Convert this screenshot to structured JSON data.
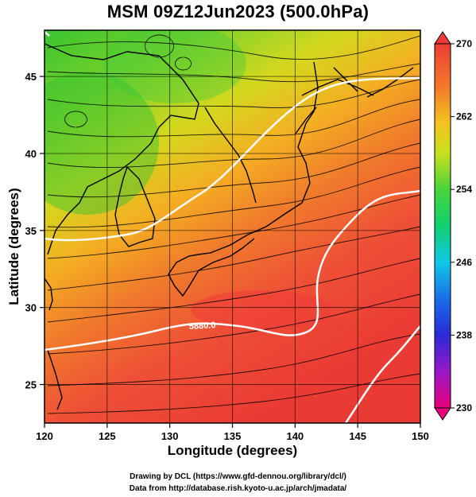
{
  "title": "MSM 09Z12Jun2023 (500.0hPa)",
  "chart_data": {
    "type": "map",
    "xlabel": "Longitude (degrees)",
    "ylabel": "Latitude  (degrees)",
    "xlim": [
      120,
      150
    ],
    "ylim": [
      22.5,
      48
    ],
    "xticks": [
      "120",
      "125",
      "130",
      "135",
      "140",
      "145",
      "150"
    ],
    "yticks": [
      "25",
      "30",
      "35",
      "40",
      "45"
    ],
    "colorbar": {
      "min": 230,
      "max": 270,
      "ticks": [
        "270",
        "262",
        "254",
        "246",
        "238",
        "230"
      ],
      "colors": [
        "#e8007a",
        "#9a18c8",
        "#2a2ad8",
        "#1a6ee8",
        "#10c8e8",
        "#10d070",
        "#4ad43a",
        "#c8e01e",
        "#f4c41e",
        "#f47a2a",
        "#ee3c34"
      ]
    },
    "contour_label": "5880.0",
    "grid": true
  },
  "credits": {
    "line1": "Drawing by DCL (https://www.gfd-dennou.org/library/dcl/)",
    "line2": "Data from http://database.rish.kyoto-u.ac.jp/arch/jmadata/"
  }
}
